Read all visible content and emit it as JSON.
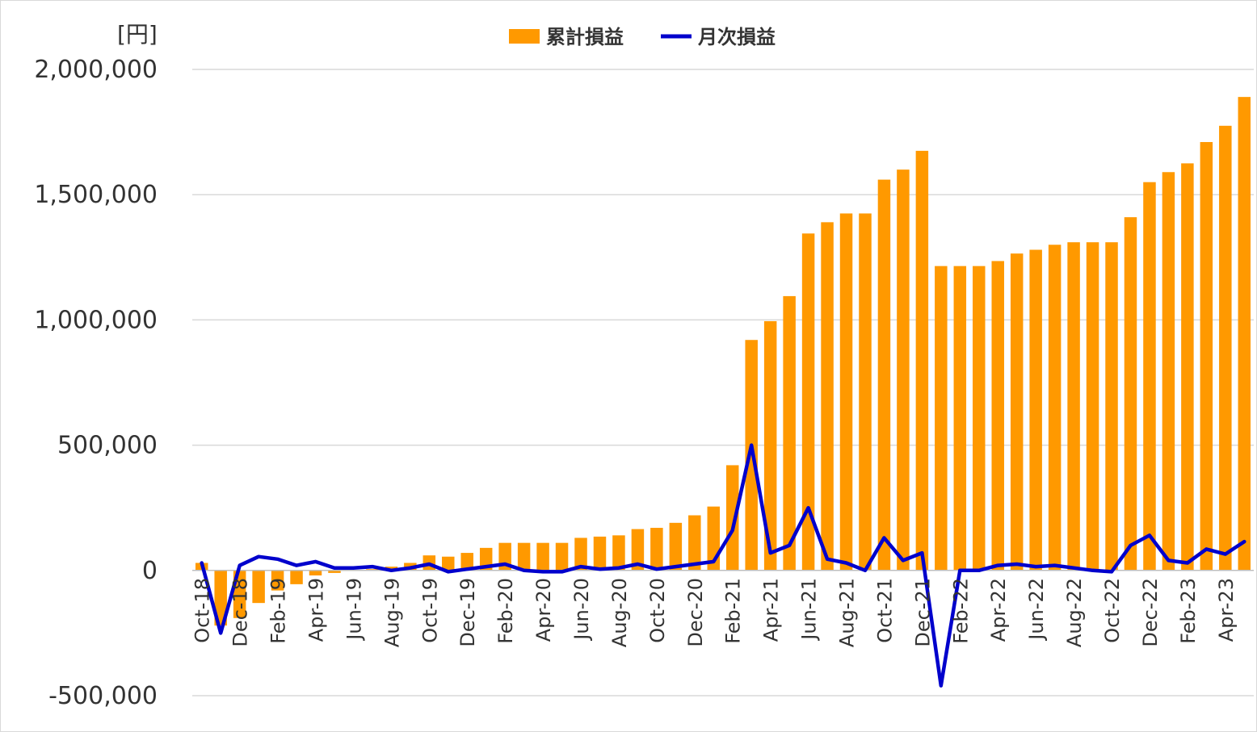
{
  "chart_data": {
    "type": "bar",
    "unit_label": "[円]",
    "ylim": [
      -500000,
      2000000
    ],
    "y_ticks": [
      -500000,
      0,
      500000,
      1000000,
      1500000,
      2000000
    ],
    "y_tick_labels": [
      "-500,000",
      "0",
      "500,000",
      "1,000,000",
      "1,500,000",
      "2,000,000"
    ],
    "grid": true,
    "legend_position": "top",
    "categories": [
      "Oct-18",
      "Nov-18",
      "Dec-18",
      "Jan-19",
      "Feb-19",
      "Mar-19",
      "Apr-19",
      "May-19",
      "Jun-19",
      "Jul-19",
      "Aug-19",
      "Sep-19",
      "Oct-19",
      "Nov-19",
      "Dec-19",
      "Jan-20",
      "Feb-20",
      "Mar-20",
      "Apr-20",
      "May-20",
      "Jun-20",
      "Jul-20",
      "Aug-20",
      "Sep-20",
      "Oct-20",
      "Nov-20",
      "Dec-20",
      "Jan-21",
      "Feb-21",
      "Mar-21",
      "Apr-21",
      "May-21",
      "Jun-21",
      "Jul-21",
      "Aug-21",
      "Sep-21",
      "Oct-21",
      "Nov-21",
      "Dec-21",
      "Jan-22",
      "Feb-22",
      "Mar-22",
      "Apr-22",
      "May-22",
      "Jun-22",
      "Jul-22",
      "Aug-22",
      "Sep-22",
      "Oct-22",
      "Nov-22",
      "Dec-22",
      "Jan-23",
      "Feb-23",
      "Mar-23",
      "Apr-23",
      "May-23"
    ],
    "x_tick_labels": [
      "Oct-18",
      "Dec-18",
      "Feb-19",
      "Apr-19",
      "Jun-19",
      "Aug-19",
      "Oct-19",
      "Dec-19",
      "Feb-20",
      "Apr-20",
      "Jun-20",
      "Aug-20",
      "Oct-20",
      "Dec-20",
      "Feb-21",
      "Apr-21",
      "Jun-21",
      "Aug-21",
      "Oct-21",
      "Dec-21",
      "Feb-22",
      "Apr-22",
      "Jun-22",
      "Aug-22",
      "Oct-22",
      "Dec-22",
      "Feb-23",
      "Apr-23"
    ],
    "series": [
      {
        "name": "累計損益",
        "kind": "bar",
        "color": "#FF9900",
        "values": [
          30000,
          -220000,
          -190000,
          -130000,
          -80000,
          -55000,
          -20000,
          -10000,
          0,
          5000,
          15000,
          30000,
          60000,
          55000,
          70000,
          90000,
          110000,
          110000,
          110000,
          110000,
          130000,
          135000,
          140000,
          165000,
          170000,
          190000,
          220000,
          255000,
          420000,
          920000,
          995000,
          1095000,
          1345000,
          1390000,
          1425000,
          1425000,
          1560000,
          1600000,
          1675000,
          1215000,
          1215000,
          1215000,
          1235000,
          1265000,
          1280000,
          1300000,
          1310000,
          1310000,
          1310000,
          1410000,
          1550000,
          1590000,
          1625000,
          1710000,
          1775000,
          1890000
        ]
      },
      {
        "name": "月次損益",
        "kind": "line",
        "color": "#0000CC",
        "values": [
          30000,
          -250000,
          20000,
          55000,
          45000,
          20000,
          35000,
          10000,
          10000,
          15000,
          0,
          10000,
          25000,
          -5000,
          5000,
          15000,
          25000,
          0,
          -5000,
          -5000,
          15000,
          5000,
          10000,
          25000,
          5000,
          15000,
          25000,
          35000,
          160000,
          500000,
          70000,
          100000,
          250000,
          45000,
          30000,
          0,
          130000,
          40000,
          70000,
          -460000,
          0,
          0,
          20000,
          25000,
          15000,
          20000,
          10000,
          0,
          -5000,
          100000,
          140000,
          40000,
          30000,
          85000,
          65000,
          115000
        ]
      }
    ]
  }
}
